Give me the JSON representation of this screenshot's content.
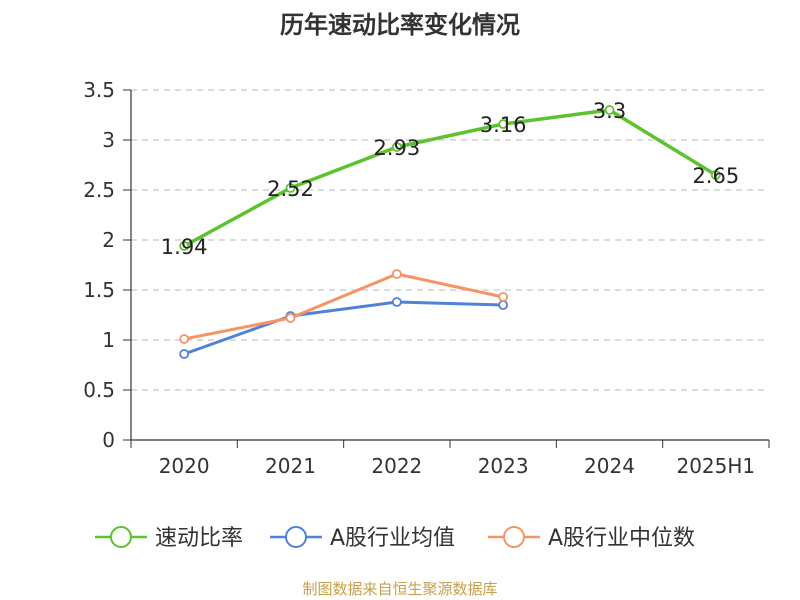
{
  "chart_data": {
    "type": "line",
    "title": "历年速动比率变化情况",
    "categories": [
      "2020",
      "2021",
      "2022",
      "2023",
      "2024",
      "2025H1"
    ],
    "ylim": [
      0,
      3.5
    ],
    "yticks": [
      "0",
      "0.5",
      "1",
      "1.5",
      "2",
      "2.5",
      "3",
      "3.5"
    ],
    "grid": true,
    "legend_position": "bottom",
    "series": [
      {
        "name": "速动比率",
        "color": "#5cc22e",
        "values": [
          1.94,
          2.52,
          2.93,
          3.16,
          3.3,
          2.65
        ],
        "labels": [
          "1.94",
          "2.52",
          "2.93",
          "3.16",
          "3.3",
          "2.65"
        ]
      },
      {
        "name": "A股行业均值",
        "color": "#4f81d9",
        "values": [
          0.86,
          1.24,
          1.38,
          1.35,
          null,
          null
        ]
      },
      {
        "name": "A股行业中位数",
        "color": "#f59466",
        "values": [
          1.01,
          1.22,
          1.66,
          1.43,
          null,
          null
        ]
      }
    ]
  },
  "source_note": "制图数据来自恒生聚源数据库"
}
